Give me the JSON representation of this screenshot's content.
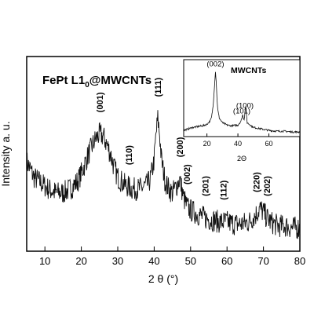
{
  "chart_data": [
    {
      "type": "line",
      "title": "FePt L1",
      "title_subscript": "0",
      "title_suffix": "@MWCNTs",
      "xlabel": "2 θ (°)",
      "ylabel": "Intensity a. u.",
      "xlim": [
        5,
        80
      ],
      "ylim": [
        0,
        1
      ],
      "x_ticks": [
        10,
        20,
        30,
        40,
        50,
        60,
        70,
        80
      ],
      "y_ticks_shown": false,
      "grid": false,
      "series": [
        {
          "x": [
            5,
            7,
            9,
            11,
            13,
            15,
            17,
            19,
            20,
            21,
            22,
            23,
            24,
            25,
            26,
            27,
            28,
            29,
            30,
            32,
            34,
            36,
            38,
            39,
            40,
            40.5,
            41,
            41.5,
            42,
            43,
            44,
            45,
            46,
            47,
            48,
            49,
            50,
            52,
            54,
            56,
            58,
            60,
            62,
            64,
            66,
            67,
            68,
            69,
            70,
            71,
            72,
            74,
            76,
            78,
            80
          ],
          "values": [
            0.46,
            0.38,
            0.35,
            0.32,
            0.3,
            0.3,
            0.32,
            0.36,
            0.4,
            0.45,
            0.5,
            0.54,
            0.58,
            0.6,
            0.59,
            0.55,
            0.5,
            0.43,
            0.38,
            0.34,
            0.32,
            0.32,
            0.34,
            0.37,
            0.47,
            0.6,
            0.68,
            0.6,
            0.47,
            0.36,
            0.32,
            0.3,
            0.33,
            0.37,
            0.28,
            0.23,
            0.21,
            0.19,
            0.17,
            0.16,
            0.15,
            0.15,
            0.14,
            0.14,
            0.15,
            0.17,
            0.19,
            0.22,
            0.2,
            0.17,
            0.15,
            0.13,
            0.13,
            0.12,
            0.12
          ]
        }
      ],
      "peak_labels": [
        {
          "text": "(001)",
          "x": 25
        },
        {
          "text": "(110)",
          "x": 33
        },
        {
          "text": "(111)",
          "x": 41
        },
        {
          "text": "(200)",
          "x": 47
        },
        {
          "text": "(002)",
          "x": 49
        },
        {
          "text": "(201)",
          "x": 54
        },
        {
          "text": "(112)",
          "x": 59
        },
        {
          "text": "(220)",
          "x": 68
        },
        {
          "text": "(202)",
          "x": 71
        }
      ]
    },
    {
      "type": "line",
      "title": "MWCNTs",
      "xlabel": "2Θ",
      "xlim": [
        5,
        80
      ],
      "ylim": [
        0,
        1
      ],
      "x_ticks": [
        20,
        40,
        60
      ],
      "grid": false,
      "series": [
        {
          "x": [
            5,
            8,
            11,
            14,
            17,
            20,
            22,
            23,
            24,
            25,
            25.5,
            26,
            26.5,
            27,
            28,
            30,
            33,
            36,
            40,
            42,
            43,
            44,
            45,
            46,
            50,
            55,
            60,
            65,
            70,
            75,
            80
          ],
          "values": [
            0.08,
            0.1,
            0.12,
            0.13,
            0.14,
            0.16,
            0.2,
            0.25,
            0.4,
            0.7,
            0.85,
            0.72,
            0.5,
            0.35,
            0.24,
            0.18,
            0.15,
            0.14,
            0.15,
            0.2,
            0.28,
            0.22,
            0.4,
            0.18,
            0.12,
            0.1,
            0.08,
            0.07,
            0.07,
            0.06,
            0.06
          ]
        }
      ],
      "peak_labels": [
        {
          "text": "(002)",
          "x": 25.5
        },
        {
          "text": "(101)",
          "x": 42.5
        },
        {
          "text": "(100)",
          "x": 44.5
        }
      ]
    }
  ]
}
